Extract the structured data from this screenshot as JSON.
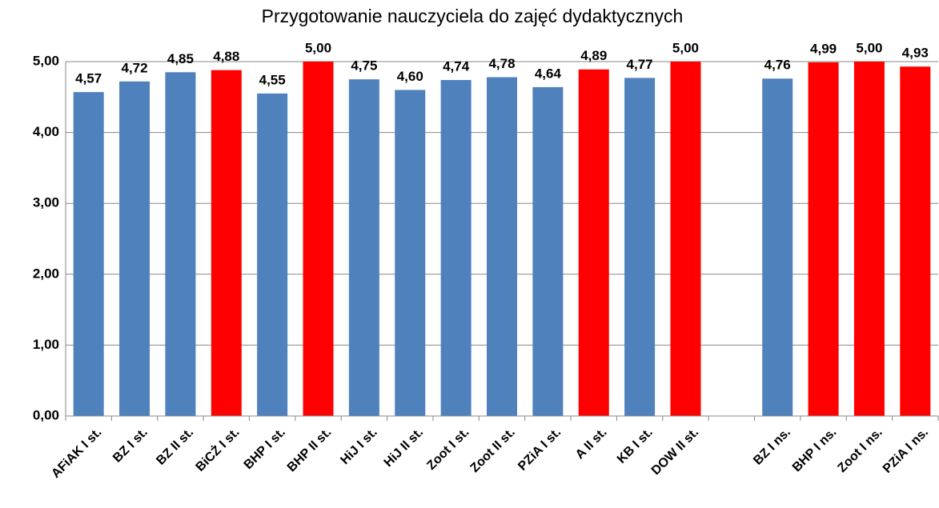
{
  "chart_data": {
    "type": "bar",
    "title": "Przygotowanie nauczyciela do zajęć dydaktycznych",
    "categories": [
      "AFiAK I st.",
      "BZ I st.",
      "BZ II st.",
      "BiCŻ I st.",
      "BHP I st.",
      "BHP II st.",
      "HiJ I st.",
      "HiJ II st.",
      "Zoot I st.",
      "Zoot II st.",
      "PZiA I st.",
      "A II st.",
      "KB I st.",
      "DOW II st.",
      null,
      "BZ I ns.",
      "BHP I ns.",
      "Zoot I ns.",
      "PZiA I ns."
    ],
    "values": [
      4.57,
      4.72,
      4.85,
      4.88,
      4.55,
      5.0,
      4.75,
      4.6,
      4.74,
      4.78,
      4.64,
      4.89,
      4.77,
      5.0,
      null,
      4.76,
      4.99,
      5.0,
      4.93
    ],
    "value_labels": [
      "4,57",
      "4,72",
      "4,85",
      "4,88",
      "4,55",
      "5,00",
      "4,75",
      "4,60",
      "4,74",
      "4,78",
      "4,64",
      "4,89",
      "4,77",
      "5,00",
      null,
      "4,76",
      "4,99",
      "5,00",
      "4,93"
    ],
    "colors": [
      "#4f81bd",
      "#4f81bd",
      "#4f81bd",
      "#ff0000",
      "#4f81bd",
      "#ff0000",
      "#4f81bd",
      "#4f81bd",
      "#4f81bd",
      "#4f81bd",
      "#4f81bd",
      "#ff0000",
      "#4f81bd",
      "#ff0000",
      null,
      "#4f81bd",
      "#ff0000",
      "#ff0000",
      "#ff0000"
    ],
    "ylim": [
      0,
      5
    ],
    "yticks": [
      {
        "value": 0,
        "label": "0,00"
      },
      {
        "value": 1,
        "label": "1,00"
      },
      {
        "value": 2,
        "label": "2,00"
      },
      {
        "value": 3,
        "label": "3,00"
      },
      {
        "value": 4,
        "label": "4,00"
      },
      {
        "value": 5,
        "label": "5,00"
      }
    ],
    "grid": true
  }
}
